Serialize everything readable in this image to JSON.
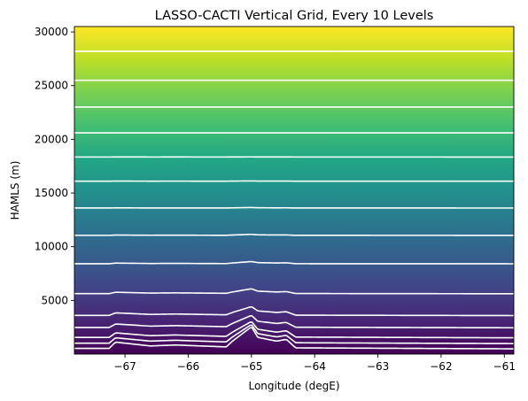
{
  "chart_data": {
    "type": "area",
    "title": "LASSO-CACTI Vertical Grid, Every 10 Levels",
    "xlabel": "Longitude (degE)",
    "ylabel": "HAMLS (m)",
    "xlim": [
      -67.8,
      -60.85
    ],
    "ylim": [
      0,
      30500
    ],
    "x_ticks": [
      -67,
      -66,
      -65,
      -64,
      -63,
      -62,
      -61
    ],
    "x_tick_labels": [
      "−67",
      "−66",
      "−65",
      "−64",
      "−63",
      "−62",
      "−61"
    ],
    "y_ticks": [
      5000,
      10000,
      15000,
      20000,
      25000,
      30000
    ],
    "y_tick_labels": [
      "5000",
      "10000",
      "15000",
      "20000",
      "25000",
      "30000"
    ],
    "colormap": "viridis",
    "color_low": "#440154",
    "color_high": "#fde725",
    "line_color": "#ffffff",
    "grid": false,
    "terrain_profile": {
      "x": [
        -67.8,
        -67.25,
        -67.15,
        -66.6,
        -66.2,
        -65.4,
        -65.3,
        -65.0,
        -64.9,
        -64.6,
        -64.45,
        -64.3,
        -60.85
      ],
      "terrain": [
        150,
        150,
        800,
        400,
        500,
        300,
        900,
        2400,
        1300,
        900,
        1100,
        200,
        100
      ]
    },
    "level_heights": [
      400,
      900,
      1450,
      2400,
      3550,
      5600,
      8400,
      11050,
      13600,
      16100,
      18350,
      20600,
      23000,
      25500,
      28200
    ]
  }
}
